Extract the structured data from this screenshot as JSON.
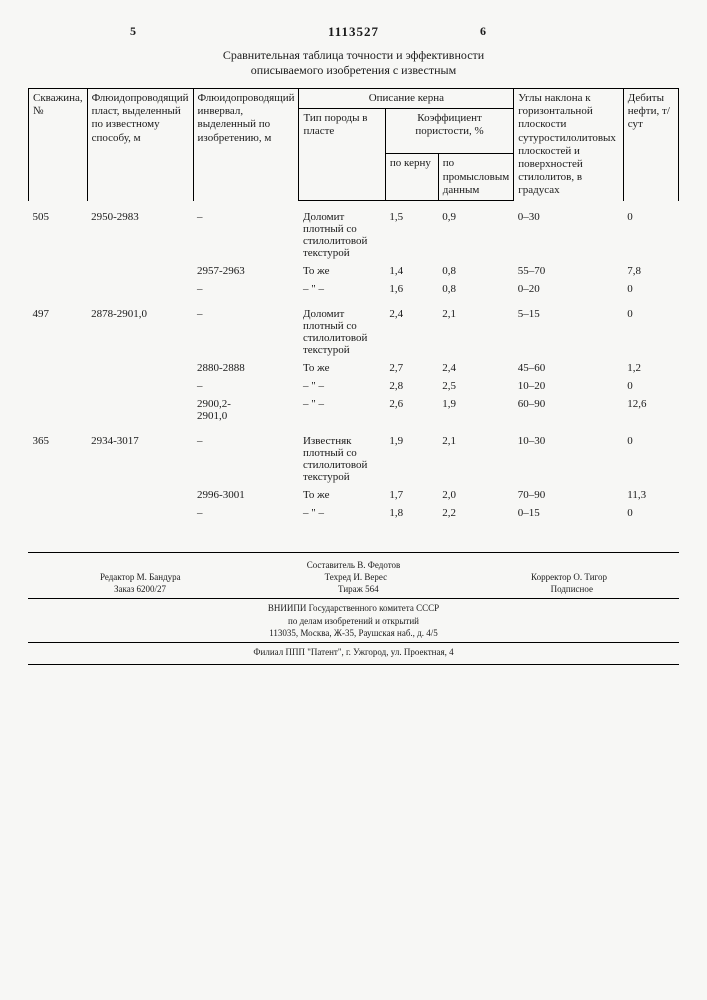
{
  "header": {
    "col_left": "5",
    "col_right": "6",
    "doc_id": "1113527",
    "subtitle_l1": "Сравнительная таблица точности и эффективности",
    "subtitle_l2": "описываемого изобретения  с известным"
  },
  "table": {
    "head": {
      "well": "Скважина, №",
      "known": "Флюидопроводящий пласт, выделенный по известному способу, м",
      "inv": "Флюидопроводящий инвервал, выделенный по изобретению, м",
      "core_desc": "Описание керна",
      "rock_type": "Тип породы в пласте",
      "porosity": "Коэффициент пористости, %",
      "by_core": "по керну",
      "by_field": "по промысловым данным",
      "angles": "Углы наклона к горизонтальной плоскости сутуростилолитовых плоскостей и поверхностей стилолитов, в градусах",
      "debits": "Дебиты нефти, т/сут"
    },
    "rows": [
      {
        "w": "505",
        "k": "2950-2983",
        "i": "–",
        "t": "Доломит плотный со стилолитовой текстурой",
        "pc": "1,5",
        "pf": "0,9",
        "a": "0–30",
        "d": "0"
      },
      {
        "w": "",
        "k": "",
        "i": "2957-2963",
        "t": "То же",
        "pc": "1,4",
        "pf": "0,8",
        "a": "55–70",
        "d": "7,8"
      },
      {
        "w": "",
        "k": "",
        "i": "–",
        "t": "– \" –",
        "pc": "1,6",
        "pf": "0,8",
        "a": "0–20",
        "d": "0"
      },
      {
        "w": "497",
        "k": "2878-2901,0",
        "i": "–",
        "t": "Доломит плотный со стилолитовой текстурой",
        "pc": "2,4",
        "pf": "2,1",
        "a": "5–15",
        "d": "0"
      },
      {
        "w": "",
        "k": "",
        "i": "2880-2888",
        "t": "То же",
        "pc": "2,7",
        "pf": "2,4",
        "a": "45–60",
        "d": "1,2"
      },
      {
        "w": "",
        "k": "",
        "i": "–",
        "t": "– \" –",
        "pc": "2,8",
        "pf": "2,5",
        "a": "10–20",
        "d": "0"
      },
      {
        "w": "",
        "k": "",
        "i": "2900,2-2901,0",
        "t": "– \" –",
        "pc": "2,6",
        "pf": "1,9",
        "a": "60–90",
        "d": "12,6"
      },
      {
        "w": "365",
        "k": "2934-3017",
        "i": "–",
        "t": "Известняк плотный со стилолитовой текстурой",
        "pc": "1,9",
        "pf": "2,1",
        "a": "10–30",
        "d": "0"
      },
      {
        "w": "",
        "k": "",
        "i": "2996-3001",
        "t": "То же",
        "pc": "1,7",
        "pf": "2,0",
        "a": "70–90",
        "d": "11,3"
      },
      {
        "w": "",
        "k": "",
        "i": "–",
        "t": "– \" –",
        "pc": "1,8",
        "pf": "2,2",
        "a": "0–15",
        "d": "0"
      }
    ]
  },
  "footer": {
    "compiler": "Составитель В. Федотов",
    "editor": "Редактор М. Бандура",
    "techred": "Техред И. Верес",
    "corrector": "Корректор О. Тигор",
    "order": "Заказ 6200/27",
    "tirazh": "Тираж 564",
    "podpisnoe": "Подписное",
    "org_l1": "ВНИИПИ Государственного комитета СССР",
    "org_l2": "по делам изобретений и открытий",
    "addr": "113035, Москва, Ж-35, Раушская наб., д. 4/5",
    "branch": "Филиал ППП \"Патент\", г. Ужгород, ул. Проектная, 4"
  }
}
